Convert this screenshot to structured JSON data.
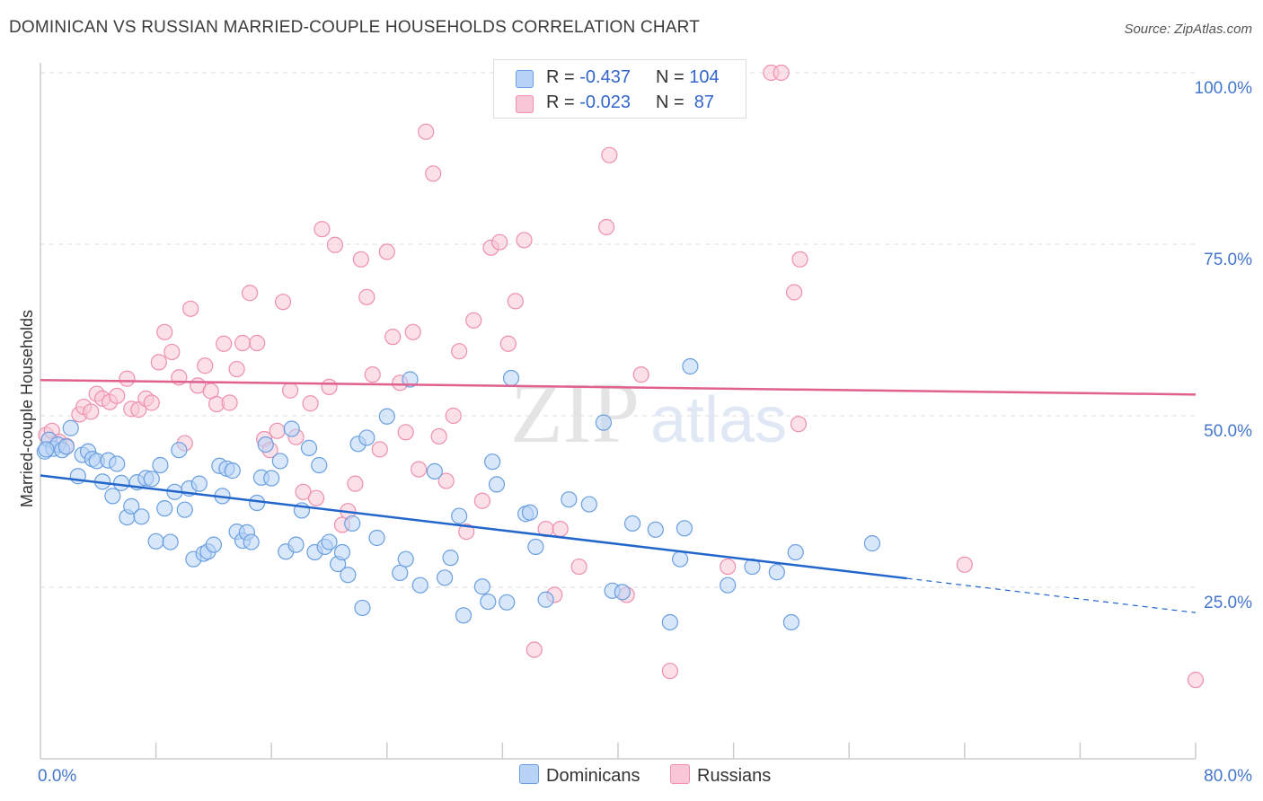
{
  "title": "DOMINICAN VS RUSSIAN MARRIED-COUPLE HOUSEHOLDS CORRELATION CHART",
  "source": "Source: ZipAtlas.com",
  "watermark": {
    "zip": "ZIP",
    "atlas": "atlas"
  },
  "legend": {
    "rows": [
      {
        "r_label": "R = ",
        "r_value": "-0.437",
        "n_label": "N = ",
        "n_value": "104"
      },
      {
        "r_label": "R = ",
        "r_value": "-0.023",
        "n_label": "N = ",
        "n_value": " 87"
      }
    ]
  },
  "colors": {
    "dominican_fill": "#b8d3f5",
    "dominican_stroke": "#6a9fe0",
    "dominican_line": "#2266cc",
    "russian_fill": "#f8c6d6",
    "russian_stroke": "#ee8fae",
    "russian_line": "#e06090",
    "axis_text": "#4477cc",
    "grid": "#dddddd"
  },
  "chart_data": {
    "type": "scatter",
    "title": "DOMINICAN VS RUSSIAN MARRIED-COUPLE HOUSEHOLDS CORRELATION CHART",
    "xlabel": "",
    "ylabel": "Married-couple Households",
    "xlim": [
      0,
      80
    ],
    "ylim": [
      2,
      102
    ],
    "x_ticks_labeled": [
      {
        "value": 0,
        "label": "0.0%"
      },
      {
        "value": 80,
        "label": "80.0%"
      }
    ],
    "x_ticks_minor": [
      8,
      16,
      24,
      32,
      40,
      48,
      56,
      64,
      72
    ],
    "y_ticks": [
      {
        "value": 25,
        "label": "25.0%"
      },
      {
        "value": 50,
        "label": "50.0%"
      },
      {
        "value": 75,
        "label": "75.0%"
      },
      {
        "value": 100,
        "label": "100.0%"
      }
    ],
    "grid": "horizontal dashed",
    "legend_placement": "top-center",
    "series": [
      {
        "name": "Dominicans",
        "color": "#6a9fe0",
        "trend": {
          "x0": 0,
          "y0": 41.3,
          "x1": 60,
          "y1": 26.3,
          "dashed_to_x": 80,
          "dashed_to_y": 21.3
        },
        "points": [
          [
            0.3,
            44.8
          ],
          [
            0.6,
            46.5
          ],
          [
            0.9,
            45.2
          ],
          [
            1.2,
            45.8
          ],
          [
            1.5,
            45
          ],
          [
            1.8,
            45.5
          ],
          [
            2.1,
            48.2
          ],
          [
            2.6,
            41.2
          ],
          [
            2.9,
            44.3
          ],
          [
            3.3,
            44.8
          ],
          [
            3.6,
            43.7
          ],
          [
            3.9,
            43.4
          ],
          [
            4.3,
            40.4
          ],
          [
            4.7,
            43.5
          ],
          [
            5.0,
            38.3
          ],
          [
            5.3,
            43.0
          ],
          [
            5.6,
            40.2
          ],
          [
            6.0,
            35.2
          ],
          [
            6.3,
            36.8
          ],
          [
            6.7,
            40.3
          ],
          [
            7.0,
            35.3
          ],
          [
            7.3,
            40.9
          ],
          [
            7.7,
            40.8
          ],
          [
            8.0,
            31.7
          ],
          [
            8.3,
            42.8
          ],
          [
            8.6,
            36.5
          ],
          [
            9.0,
            31.6
          ],
          [
            9.3,
            38.9
          ],
          [
            9.6,
            45.0
          ],
          [
            10.0,
            36.3
          ],
          [
            10.3,
            39.4
          ],
          [
            10.6,
            29.1
          ],
          [
            11.0,
            40.1
          ],
          [
            11.3,
            29.9
          ],
          [
            11.6,
            30.2
          ],
          [
            12.0,
            31.2
          ],
          [
            12.4,
            42.7
          ],
          [
            12.6,
            38.3
          ],
          [
            12.9,
            42.3
          ],
          [
            13.3,
            42.0
          ],
          [
            13.6,
            33.1
          ],
          [
            14.0,
            31.8
          ],
          [
            14.3,
            33.0
          ],
          [
            14.6,
            31.6
          ],
          [
            15.0,
            37.3
          ],
          [
            15.3,
            41.0
          ],
          [
            15.6,
            45.8
          ],
          [
            16.0,
            40.9
          ],
          [
            16.6,
            43.4
          ],
          [
            17.0,
            30.2
          ],
          [
            17.4,
            48.1
          ],
          [
            17.7,
            31.2
          ],
          [
            18.1,
            36.2
          ],
          [
            18.6,
            45.3
          ],
          [
            19.0,
            30.1
          ],
          [
            19.3,
            42.8
          ],
          [
            19.7,
            30.9
          ],
          [
            20.0,
            31.6
          ],
          [
            20.6,
            28.4
          ],
          [
            20.9,
            30.1
          ],
          [
            21.3,
            26.8
          ],
          [
            21.6,
            34.3
          ],
          [
            22.0,
            45.9
          ],
          [
            22.3,
            22.0
          ],
          [
            22.6,
            46.8
          ],
          [
            23.3,
            32.2
          ],
          [
            24.0,
            49.9
          ],
          [
            24.9,
            27.1
          ],
          [
            25.3,
            29.1
          ],
          [
            25.6,
            55.3
          ],
          [
            26.3,
            25.3
          ],
          [
            27.3,
            41.9
          ],
          [
            28.0,
            26.4
          ],
          [
            28.4,
            29.3
          ],
          [
            29.0,
            35.4
          ],
          [
            29.3,
            20.9
          ],
          [
            30.6,
            25.1
          ],
          [
            31.0,
            22.9
          ],
          [
            31.3,
            43.3
          ],
          [
            31.6,
            40.0
          ],
          [
            32.3,
            22.8
          ],
          [
            32.6,
            55.5
          ],
          [
            33.6,
            35.7
          ],
          [
            33.9,
            35.9
          ],
          [
            34.3,
            30.9
          ],
          [
            35.0,
            23.2
          ],
          [
            36.6,
            37.8
          ],
          [
            38.0,
            37.1
          ],
          [
            39.0,
            49.0
          ],
          [
            39.6,
            24.5
          ],
          [
            40.3,
            24.3
          ],
          [
            41.0,
            34.3
          ],
          [
            42.6,
            33.4
          ],
          [
            43.6,
            19.9
          ],
          [
            44.3,
            29.1
          ],
          [
            44.6,
            33.6
          ],
          [
            45.0,
            57.2
          ],
          [
            47.6,
            25.3
          ],
          [
            49.3,
            28.0
          ],
          [
            51.0,
            27.2
          ],
          [
            52.0,
            19.9
          ],
          [
            52.3,
            30.1
          ],
          [
            57.6,
            31.4
          ],
          [
            0.4,
            45.1
          ]
        ]
      },
      {
        "name": "Russians",
        "color": "#ee8fae",
        "trend": {
          "x0": 0,
          "y0": 55.2,
          "x1": 80,
          "y1": 53.1
        },
        "points": [
          [
            0.4,
            47.2
          ],
          [
            0.8,
            47.8
          ],
          [
            1.3,
            46.2
          ],
          [
            1.8,
            45.6
          ],
          [
            2.7,
            50.2
          ],
          [
            3.0,
            51.3
          ],
          [
            3.5,
            50.6
          ],
          [
            3.9,
            53.2
          ],
          [
            4.3,
            52.5
          ],
          [
            4.8,
            52.0
          ],
          [
            5.3,
            52.9
          ],
          [
            6.0,
            55.4
          ],
          [
            6.3,
            51.0
          ],
          [
            6.8,
            50.9
          ],
          [
            7.3,
            52.5
          ],
          [
            7.7,
            51.9
          ],
          [
            8.2,
            57.8
          ],
          [
            8.6,
            62.2
          ],
          [
            9.1,
            59.3
          ],
          [
            9.6,
            55.6
          ],
          [
            10.0,
            46.0
          ],
          [
            10.4,
            65.6
          ],
          [
            10.9,
            54.4
          ],
          [
            11.4,
            57.3
          ],
          [
            11.8,
            53.6
          ],
          [
            12.2,
            51.7
          ],
          [
            12.7,
            60.5
          ],
          [
            13.1,
            51.9
          ],
          [
            13.6,
            56.8
          ],
          [
            14.0,
            60.6
          ],
          [
            14.5,
            67.9
          ],
          [
            15.0,
            60.6
          ],
          [
            15.5,
            46.6
          ],
          [
            15.9,
            45.0
          ],
          [
            16.4,
            47.8
          ],
          [
            16.8,
            66.6
          ],
          [
            17.3,
            53.7
          ],
          [
            17.7,
            46.9
          ],
          [
            18.2,
            38.9
          ],
          [
            18.7,
            51.8
          ],
          [
            19.1,
            38.0
          ],
          [
            19.5,
            77.2
          ],
          [
            20.0,
            54.2
          ],
          [
            20.4,
            74.9
          ],
          [
            20.9,
            34.1
          ],
          [
            21.3,
            36.1
          ],
          [
            21.8,
            40.1
          ],
          [
            22.2,
            72.8
          ],
          [
            22.6,
            67.3
          ],
          [
            23.0,
            56.0
          ],
          [
            23.5,
            45.1
          ],
          [
            24.0,
            73.9
          ],
          [
            24.4,
            61.5
          ],
          [
            24.9,
            54.8
          ],
          [
            25.3,
            47.6
          ],
          [
            25.8,
            62.2
          ],
          [
            26.2,
            42.2
          ],
          [
            26.7,
            91.4
          ],
          [
            27.2,
            85.3
          ],
          [
            27.6,
            47.0
          ],
          [
            28.1,
            40.5
          ],
          [
            28.6,
            50.0
          ],
          [
            29.0,
            59.4
          ],
          [
            29.5,
            33.1
          ],
          [
            30.0,
            63.9
          ],
          [
            30.6,
            37.6
          ],
          [
            31.2,
            74.5
          ],
          [
            31.8,
            75.3
          ],
          [
            32.4,
            60.5
          ],
          [
            32.9,
            66.7
          ],
          [
            33.5,
            75.6
          ],
          [
            34.2,
            15.9
          ],
          [
            35.0,
            33.5
          ],
          [
            35.6,
            23.9
          ],
          [
            36.0,
            33.5
          ],
          [
            37.3,
            28.0
          ],
          [
            37.8,
            100.0
          ],
          [
            39.2,
            77.5
          ],
          [
            39.4,
            88.0
          ],
          [
            40.6,
            23.9
          ],
          [
            41.6,
            56.0
          ],
          [
            43.6,
            12.8
          ],
          [
            47.6,
            28.0
          ],
          [
            50.6,
            100.0
          ],
          [
            51.3,
            100.0
          ],
          [
            52.2,
            68.0
          ],
          [
            52.6,
            72.8
          ]
        ]
      }
    ],
    "extra_points": {
      "Russians": [
        [
          52.5,
          48.8
        ],
        [
          64.0,
          28.3
        ],
        [
          80.0,
          11.5
        ]
      ]
    }
  },
  "bottom_legend": [
    {
      "label": "Dominicans"
    },
    {
      "label": "Russians"
    }
  ]
}
